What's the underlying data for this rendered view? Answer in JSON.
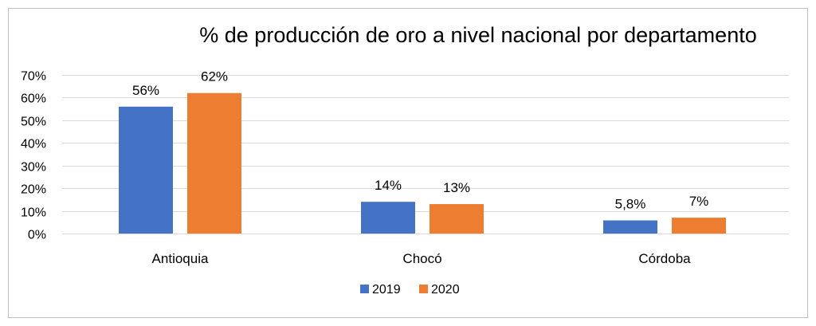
{
  "chart_data": {
    "type": "bar",
    "title": "% de producción de oro a nivel nacional  por departamento",
    "categories": [
      "Antioquia",
      "Chocó",
      "Córdoba"
    ],
    "series": [
      {
        "name": "2019",
        "color": "#4472C4",
        "values": [
          56,
          14,
          5.8
        ],
        "labels": [
          "56%",
          "14%",
          "5,8%"
        ]
      },
      {
        "name": "2020",
        "color": "#ED7D31",
        "values": [
          62,
          13,
          7
        ],
        "labels": [
          "62%",
          "13%",
          "7%"
        ]
      }
    ],
    "ylim": [
      0,
      70
    ],
    "yticks": [
      0,
      10,
      20,
      30,
      40,
      50,
      60,
      70
    ],
    "ytick_labels": [
      "0%",
      "10%",
      "20%",
      "30%",
      "40%",
      "50%",
      "60%",
      "70%"
    ],
    "xlabel": "",
    "ylabel": "",
    "grid": true,
    "legend_position": "bottom"
  }
}
